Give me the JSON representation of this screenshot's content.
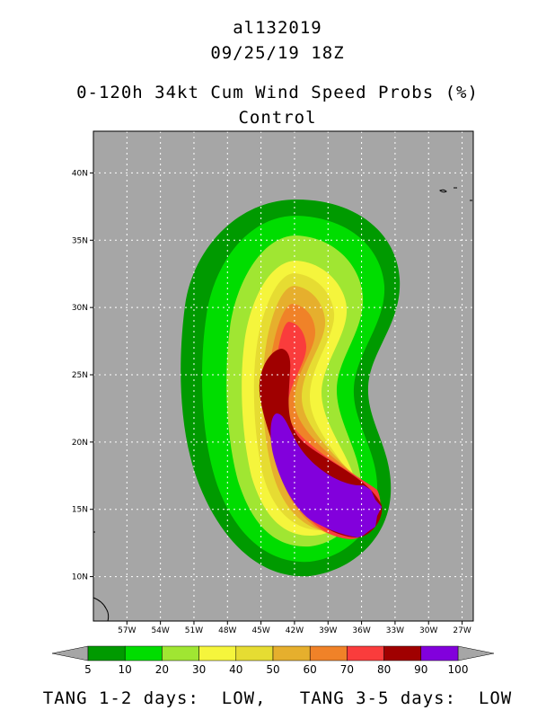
{
  "header": {
    "storm_id": "al132019",
    "datetime": "09/25/19 18Z",
    "product": "0-120h 34kt Cum Wind Speed Probs (%)",
    "run": "Control"
  },
  "footer": {
    "text": "TANG 1-2 days:  LOW,   TANG 3-5 days:  LOW"
  },
  "chart_data": {
    "type": "heatmap",
    "title": "0-120h 34kt Cum Wind Speed Probs (%)",
    "subtitle": "Control",
    "x_axis": {
      "ticks": [
        "57W",
        "54W",
        "51W",
        "48W",
        "45W",
        "42W",
        "39W",
        "36W",
        "33W",
        "30W",
        "27W"
      ],
      "lon_values": [
        -57,
        -54,
        -51,
        -48,
        -45,
        -42,
        -39,
        -36,
        -33,
        -30,
        -27
      ],
      "range": [
        -60,
        -26
      ]
    },
    "y_axis": {
      "ticks": [
        "10N",
        "15N",
        "20N",
        "25N",
        "30N",
        "35N",
        "40N"
      ],
      "lat_values": [
        10,
        15,
        20,
        25,
        30,
        35,
        40
      ],
      "range": [
        6.7,
        43.1
      ]
    },
    "grid": true,
    "background_color": "#a6a6a6",
    "contour_levels": [
      5,
      10,
      20,
      30,
      40,
      50,
      60,
      70,
      80,
      90,
      100
    ],
    "colorbar": {
      "labels": [
        "5",
        "10",
        "20",
        "30",
        "40",
        "50",
        "60",
        "70",
        "80",
        "90",
        "100"
      ],
      "colors": [
        "#009a00",
        "#00dd00",
        "#a0e632",
        "#f5f53c",
        "#e6dc32",
        "#e6af2d",
        "#f08228",
        "#fa3c3c",
        "#a00000",
        "#8200dc"
      ],
      "extend_color": "#a6a6a6"
    },
    "max_probability_center": {
      "lon": -36,
      "lat": 14.5
    }
  }
}
